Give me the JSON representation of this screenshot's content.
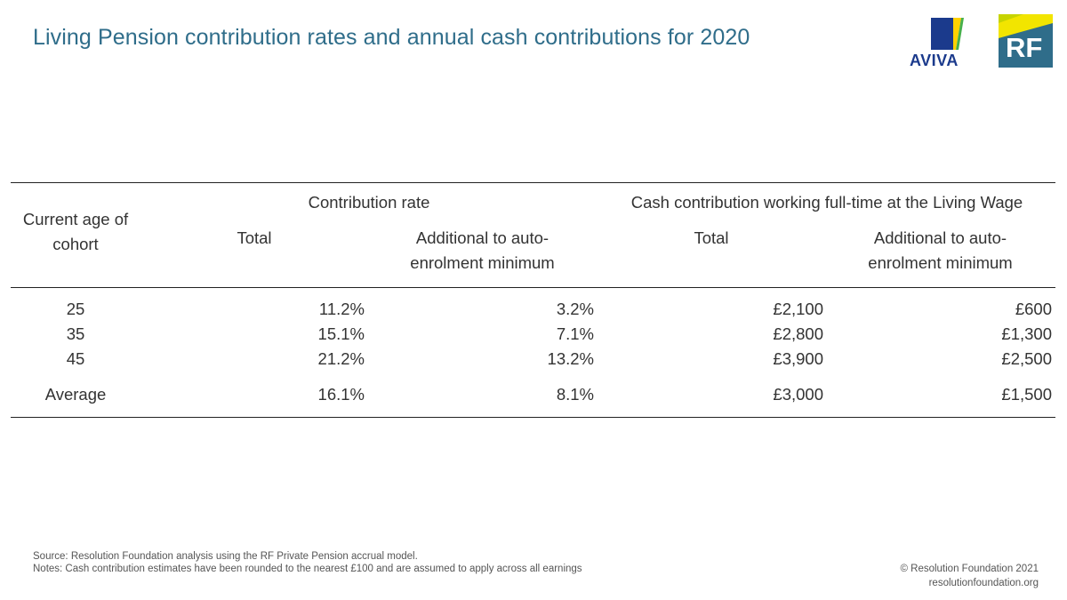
{
  "title": "Living Pension contribution rates and annual cash contributions for 2020",
  "logos": {
    "aviva": "AVIVA",
    "rf": "RF",
    "colors": {
      "aviva_blue": "#1b3a8c",
      "aviva_yellow": "#ffd200",
      "aviva_green": "#47b04b",
      "rf_teal": "#2f6d8a",
      "rf_yellow": "#f2e500"
    }
  },
  "table": {
    "row_header": "Current age of cohort",
    "groups": [
      "Contribution rate",
      "Cash contribution working full-time at the Living Wage"
    ],
    "subheaders": [
      "Total",
      "Additional to auto-enrolment minimum",
      "Total",
      "Additional to auto-enrolment minimum"
    ],
    "rows": [
      {
        "age": "25",
        "rate_total": "11.2%",
        "rate_add": "3.2%",
        "cash_total": "£2,100",
        "cash_add": "£600"
      },
      {
        "age": "35",
        "rate_total": "15.1%",
        "rate_add": "7.1%",
        "cash_total": "£2,800",
        "cash_add": "£1,300"
      },
      {
        "age": "45",
        "rate_total": "21.2%",
        "rate_add": "13.2%",
        "cash_total": "£3,900",
        "cash_add": "£2,500"
      },
      {
        "age": "Average",
        "rate_total": "16.1%",
        "rate_add": "8.1%",
        "cash_total": "£3,000",
        "cash_add": "£1,500"
      }
    ]
  },
  "footer": {
    "source": "Source: Resolution Foundation analysis using the RF Private Pension accrual model.",
    "notes": "Notes: Cash contribution estimates have been rounded to the nearest £100 and are assumed to apply across all earnings",
    "copyright": "© Resolution Foundation 2021",
    "website": "resolutionfoundation.org"
  }
}
